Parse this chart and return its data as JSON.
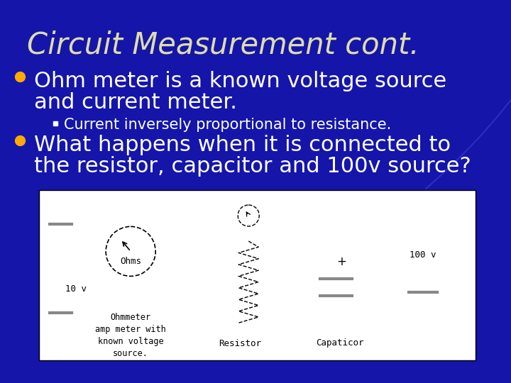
{
  "bg_color": "#1515aa",
  "title": "Circuit Measurement cont.",
  "title_color": "#ddddaa",
  "title_fontsize": 30,
  "bullet_dot_color": "#ffaa00",
  "bullet1_line1": "Ohm meter is a known voltage source",
  "bullet1_line2": "and current meter.",
  "bullet_fontsize": 22,
  "bullet_color": "#ffffff",
  "subbullet": "Current inversely proportional to resistance.",
  "subbullet_fontsize": 15,
  "subbullet_color": "#ffffff",
  "bullet2_line1": "What happens when it is connected to",
  "bullet2_line2": "the resistor, capacitor and 100v source?",
  "label_ohmmeter": "Ohmmeter\namp meter with\nknown voltage\nsource.",
  "label_ohms": "Ohms",
  "label_10v": "10 v",
  "label_resistor": "Resistor",
  "label_capacitor": "Capaticor",
  "label_100v": "100 v"
}
